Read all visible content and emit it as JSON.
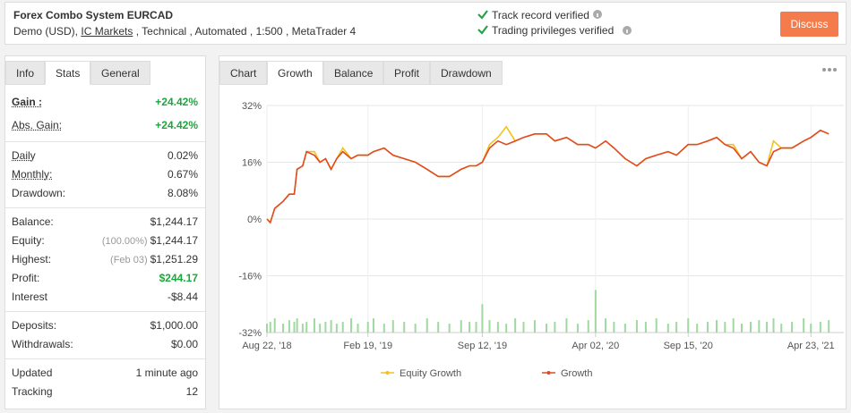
{
  "header": {
    "title": "Forex Combo System EURCAD",
    "subtitle_parts": [
      "Demo (USD),",
      "IC Markets",
      ", Technical , Automated , 1:500 , MetaTrader 4"
    ],
    "verified": [
      "Track record verified",
      "Trading privileges verified"
    ],
    "button": "Discuss"
  },
  "stats": {
    "tabs": [
      "Info",
      "Stats",
      "General"
    ],
    "active_tab": 1,
    "groups": [
      [
        {
          "label": "Gain :",
          "value": "+24.42%",
          "green": true,
          "bold": true,
          "dotted": true
        },
        {
          "label": "Abs. Gain:",
          "value": "+24.42%",
          "green": true,
          "dotted": true
        }
      ],
      [
        {
          "label": "Daily",
          "value": "0.02%",
          "dotted": true
        },
        {
          "label": "Monthly:",
          "value": "0.67%",
          "dotted": true
        },
        {
          "label": "Drawdown:",
          "value": "8.08%"
        }
      ],
      [
        {
          "label": "Balance:",
          "value": "$1,244.17"
        },
        {
          "label": "Equity:",
          "note": "(100.00%)",
          "value": "$1,244.17"
        },
        {
          "label": "Highest:",
          "note": "(Feb 03)",
          "value": "$1,251.29"
        },
        {
          "label": "Profit:",
          "value": "$244.17",
          "green": true
        },
        {
          "label": "Interest",
          "value": "-$8.44"
        }
      ],
      [
        {
          "label": "Deposits:",
          "value": "$1,000.00"
        },
        {
          "label": "Withdrawals:",
          "value": "$0.00"
        }
      ],
      [
        {
          "label": "Updated",
          "value": "1 minute ago"
        },
        {
          "label": "Tracking",
          "value": "12"
        }
      ]
    ]
  },
  "chart_panel": {
    "tabs": [
      "Chart",
      "Growth",
      "Balance",
      "Profit",
      "Drawdown"
    ],
    "active_tab": 1
  },
  "chart_data": {
    "type": "line",
    "x": [
      "2018-08-22",
      "2018-08-28",
      "2018-09-05",
      "2018-09-20",
      "2018-10-01",
      "2018-10-10",
      "2018-10-15",
      "2018-10-25",
      "2018-11-01",
      "2018-11-15",
      "2018-11-25",
      "2018-12-05",
      "2018-12-15",
      "2018-12-25",
      "2019-01-05",
      "2019-01-20",
      "2019-02-01",
      "2019-02-19",
      "2019-03-01",
      "2019-03-20",
      "2019-04-05",
      "2019-04-25",
      "2019-05-15",
      "2019-06-05",
      "2019-06-25",
      "2019-07-15",
      "2019-08-05",
      "2019-08-20",
      "2019-09-01",
      "2019-09-12",
      "2019-09-25",
      "2019-10-10",
      "2019-10-25",
      "2019-11-10",
      "2019-11-25",
      "2019-12-15",
      "2020-01-05",
      "2020-01-20",
      "2020-02-10",
      "2020-03-01",
      "2020-03-20",
      "2020-04-02",
      "2020-04-20",
      "2020-05-05",
      "2020-05-25",
      "2020-06-15",
      "2020-07-01",
      "2020-07-20",
      "2020-08-10",
      "2020-08-25",
      "2020-09-15",
      "2020-10-01",
      "2020-10-20",
      "2020-11-05",
      "2020-11-20",
      "2020-12-05",
      "2020-12-20",
      "2021-01-05",
      "2021-01-20",
      "2021-02-03",
      "2021-02-15",
      "2021-03-01",
      "2021-03-20",
      "2021-04-10",
      "2021-04-23",
      "2021-05-10",
      "2021-05-25"
    ],
    "series": [
      {
        "name": "Equity Growth",
        "color": "#f2c21b",
        "values": [
          0,
          -1,
          3,
          5,
          7,
          7,
          14,
          15,
          19,
          19,
          16,
          17,
          14,
          17,
          20,
          17,
          18,
          18,
          19,
          20,
          18,
          17,
          16,
          14,
          12,
          12,
          14,
          15,
          15,
          16,
          21,
          23,
          26,
          22,
          23,
          24,
          24,
          22,
          23,
          21,
          21,
          20,
          22,
          20,
          17,
          15,
          17,
          18,
          19,
          18,
          21,
          21,
          22,
          23,
          21,
          21,
          17,
          19,
          16,
          15,
          22,
          20,
          20,
          22,
          23,
          25,
          24
        ]
      },
      {
        "name": "Growth",
        "color": "#e04a24",
        "values": [
          0,
          -1,
          3,
          5,
          7,
          7,
          14,
          15,
          19,
          18,
          16,
          17,
          14,
          17,
          19,
          17,
          18,
          18,
          19,
          20,
          18,
          17,
          16,
          14,
          12,
          12,
          14,
          15,
          15,
          16,
          20,
          22,
          21,
          22,
          23,
          24,
          24,
          22,
          23,
          21,
          21,
          20,
          22,
          20,
          17,
          15,
          17,
          18,
          19,
          18,
          21,
          21,
          22,
          23,
          21,
          20,
          17,
          19,
          16,
          15,
          19,
          20,
          20,
          22,
          23,
          25,
          24
        ]
      }
    ],
    "trade_bars": [
      -29.5,
      -29,
      -28,
      -29.5,
      -28.5,
      -29,
      -28,
      -29.5,
      -29,
      -28,
      -29.5,
      -29,
      -28.5,
      -29.5,
      -29,
      -28,
      -29.5,
      -29,
      -28,
      -29.5,
      -28.5,
      -29,
      -29.5,
      -28,
      -29,
      -29.5,
      -28.5,
      -29,
      -29,
      -24,
      -28.5,
      -29,
      -29.5,
      -28,
      -29,
      -28.5,
      -29.5,
      -29,
      -28,
      -29.5,
      -28.5,
      -20,
      -28,
      -29,
      -29.5,
      -28.5,
      -29,
      -28,
      -29.5,
      -29,
      -28,
      -29.5,
      -29,
      -28.5,
      -29,
      -28,
      -29.5,
      -29,
      -28.5,
      -29,
      -28,
      -29.5,
      -29,
      -28,
      -29.5,
      -29,
      -28.5
    ],
    "bar_color": "#9fd99f",
    "ylim": [
      -32,
      32
    ],
    "yticks": [
      {
        "value": 32,
        "label": "32%"
      },
      {
        "value": 16,
        "label": "16%"
      },
      {
        "value": 0,
        "label": "0%"
      },
      {
        "value": -16,
        "label": "-16%"
      },
      {
        "value": -32,
        "label": "-32%"
      }
    ],
    "xlim": [
      "2018-08-22",
      "2021-06-21"
    ],
    "xticks": [
      {
        "value": "2018-08-22",
        "label": "Aug 22, '18"
      },
      {
        "value": "2019-02-19",
        "label": "Feb 19, '19"
      },
      {
        "value": "2019-09-12",
        "label": "Sep 12, '19"
      },
      {
        "value": "2020-04-02",
        "label": "Apr 02, '20"
      },
      {
        "value": "2020-09-15",
        "label": "Sep 15, '20"
      },
      {
        "value": "2021-04-23",
        "label": "Apr 23, '21"
      }
    ],
    "grid": true
  }
}
